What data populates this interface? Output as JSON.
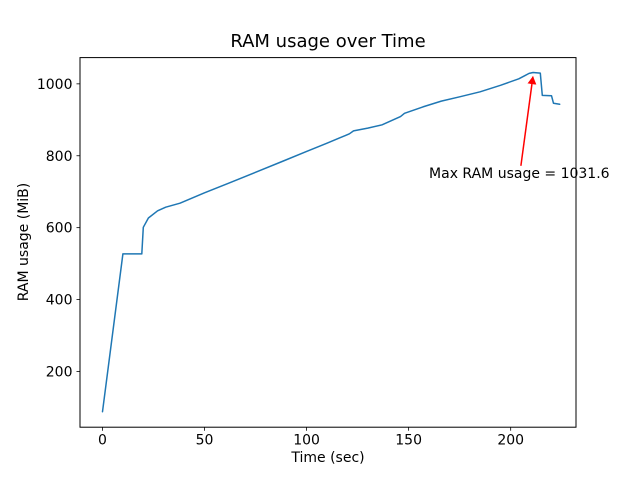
{
  "figure": {
    "background": "#ffffff"
  },
  "chart_data": {
    "type": "line",
    "title": "RAM usage over Time",
    "xlabel": "Time (sec)",
    "ylabel": "RAM usage (MiB)",
    "x_ticks": [
      0,
      50,
      100,
      150,
      200
    ],
    "y_ticks": [
      200,
      400,
      600,
      800,
      1000
    ],
    "xlim": [
      -11,
      232
    ],
    "ylim": [
      45,
      1073
    ],
    "grid": false,
    "line_color": "#1f77b4",
    "frame_color": "#000000",
    "max_ram_mib": 1031.6,
    "series": [
      {
        "name": "RAM usage (MiB)",
        "points": [
          [
            0,
            88
          ],
          [
            10,
            527
          ],
          [
            19.3,
            527
          ],
          [
            20,
            601
          ],
          [
            22.5,
            627
          ],
          [
            27,
            647
          ],
          [
            31,
            657
          ],
          [
            38,
            668
          ],
          [
            50,
            697
          ],
          [
            62,
            724
          ],
          [
            75,
            754
          ],
          [
            88,
            784
          ],
          [
            100,
            812
          ],
          [
            110,
            835
          ],
          [
            116,
            849
          ],
          [
            119,
            856
          ],
          [
            121,
            861
          ],
          [
            123,
            869
          ],
          [
            130,
            877
          ],
          [
            137,
            886
          ],
          [
            146,
            909
          ],
          [
            148,
            918
          ],
          [
            157,
            936
          ],
          [
            166,
            952
          ],
          [
            175,
            964
          ],
          [
            185,
            978
          ],
          [
            195,
            996
          ],
          [
            204,
            1014
          ],
          [
            207,
            1023
          ],
          [
            209,
            1029
          ],
          [
            211,
            1031.6
          ],
          [
            214.5,
            1030
          ],
          [
            215.5,
            968
          ],
          [
            220,
            967
          ],
          [
            221,
            946
          ],
          [
            224,
            943
          ]
        ]
      }
    ],
    "annotation": {
      "text": "Max RAM usage = 1031.6",
      "color": "#ff0000",
      "text_anchor_data": [
        160,
        738
      ],
      "arrow_from_data": [
        205,
        772
      ],
      "arrow_to_data": [
        210.9,
        1020
      ]
    }
  }
}
